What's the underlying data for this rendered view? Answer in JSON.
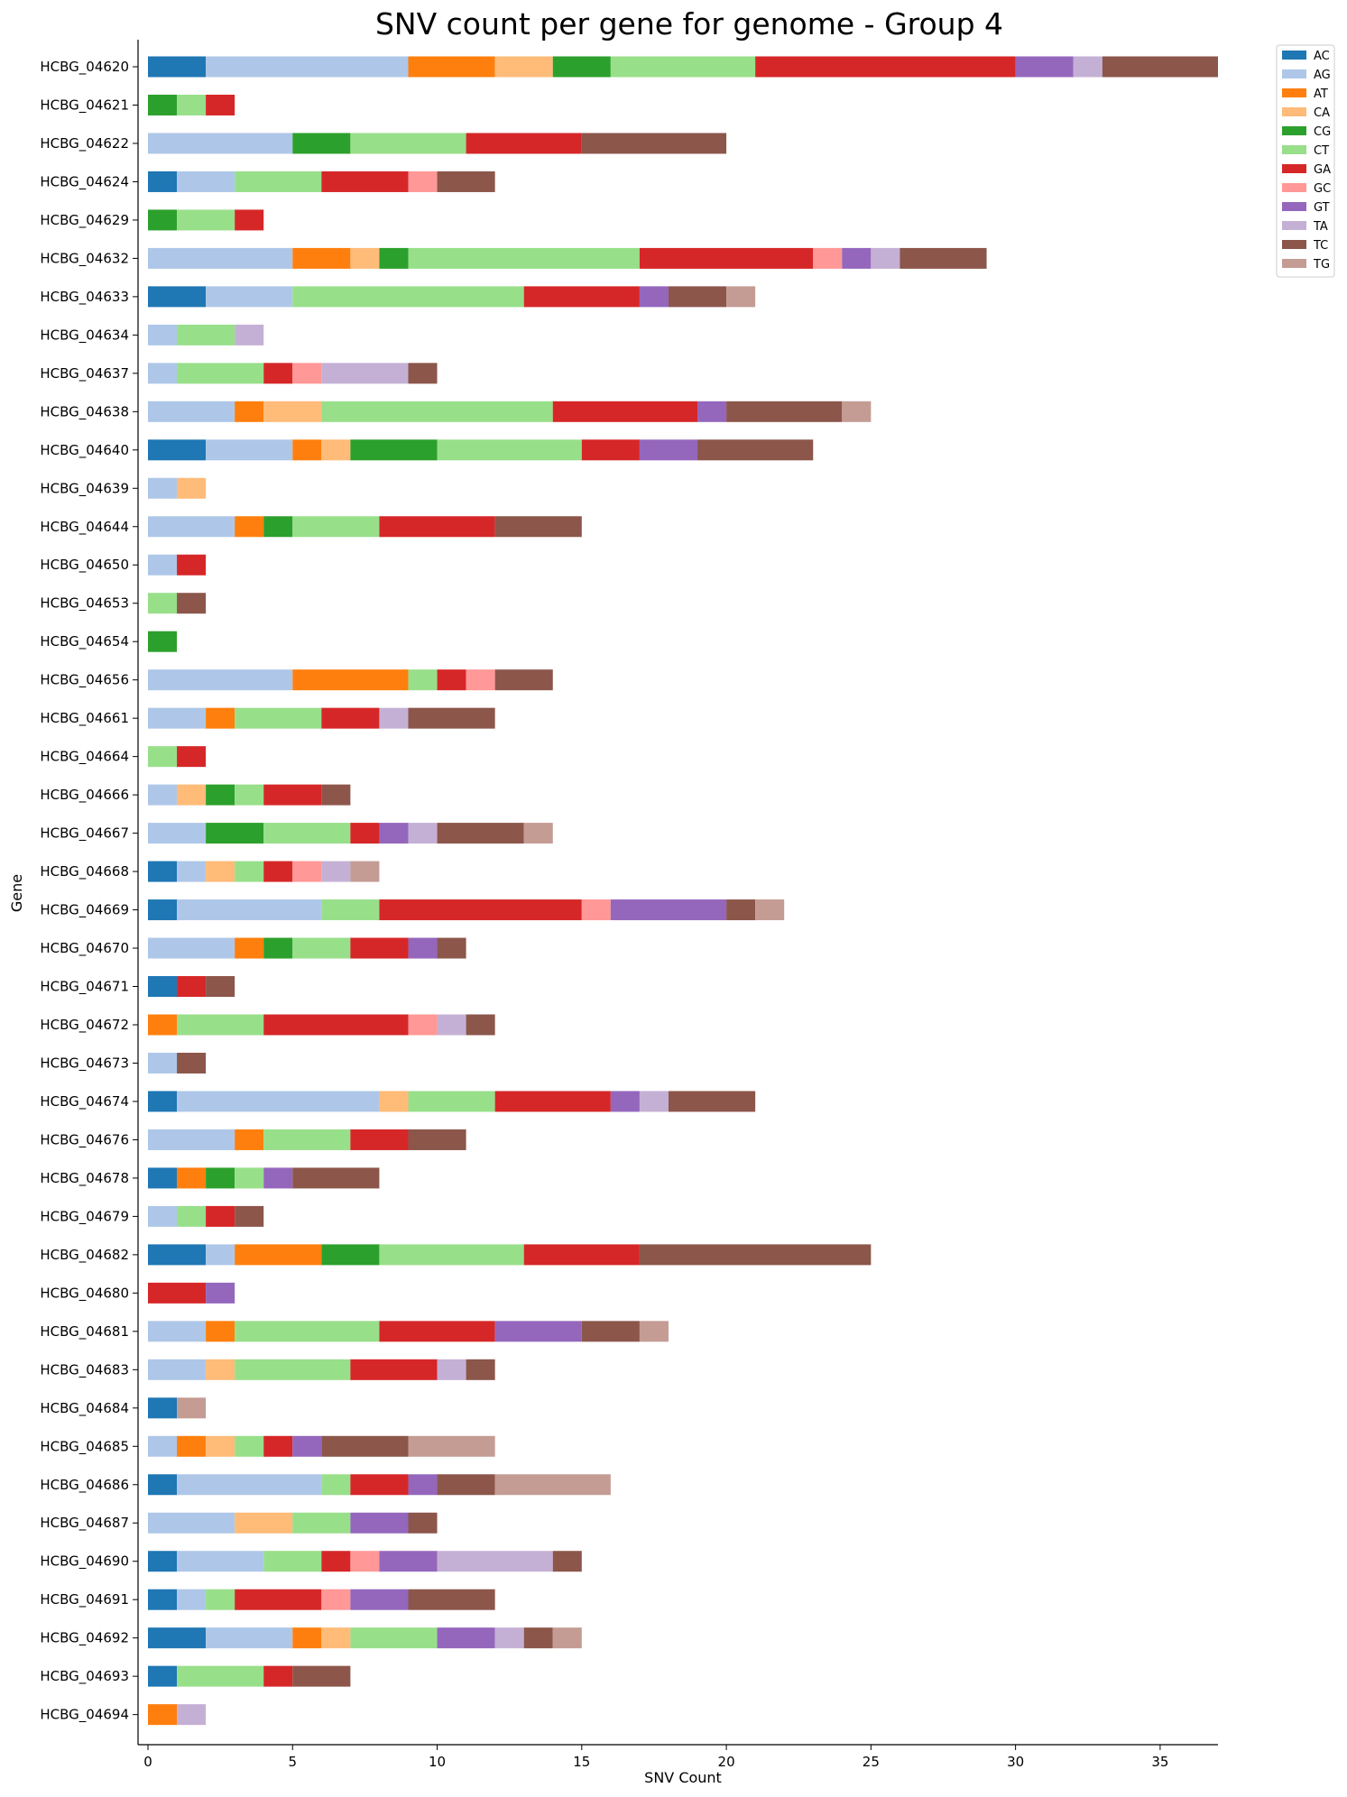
{
  "chart_data": {
    "type": "bar",
    "orientation": "horizontal",
    "stacked": true,
    "title": "SNV count per gene for genome - Group 4",
    "xlabel": "SNV Count",
    "ylabel": "Gene",
    "xlim": [
      0,
      37
    ],
    "xticks": [
      0,
      5,
      10,
      15,
      20,
      25,
      30,
      35
    ],
    "grid": false,
    "legend_position": "top-right, outside plot",
    "categories": [
      "HCBG_04620",
      "HCBG_04621",
      "HCBG_04622",
      "HCBG_04624",
      "HCBG_04629",
      "HCBG_04632",
      "HCBG_04633",
      "HCBG_04634",
      "HCBG_04637",
      "HCBG_04638",
      "HCBG_04640",
      "HCBG_04639",
      "HCBG_04644",
      "HCBG_04650",
      "HCBG_04653",
      "HCBG_04654",
      "HCBG_04656",
      "HCBG_04661",
      "HCBG_04664",
      "HCBG_04666",
      "HCBG_04667",
      "HCBG_04668",
      "HCBG_04669",
      "HCBG_04670",
      "HCBG_04671",
      "HCBG_04672",
      "HCBG_04673",
      "HCBG_04674",
      "HCBG_04676",
      "HCBG_04678",
      "HCBG_04679",
      "HCBG_04682",
      "HCBG_04680",
      "HCBG_04681",
      "HCBG_04683",
      "HCBG_04684",
      "HCBG_04685",
      "HCBG_04686",
      "HCBG_04687",
      "HCBG_04690",
      "HCBG_04691",
      "HCBG_04692",
      "HCBG_04693",
      "HCBG_04694"
    ],
    "series": [
      {
        "name": "AC",
        "color": "#1f77b4",
        "values": [
          2,
          0,
          0,
          1,
          0,
          0,
          2,
          0,
          0,
          0,
          2,
          0,
          0,
          0,
          0,
          0,
          0,
          0,
          0,
          0,
          0,
          1,
          1,
          0,
          1,
          0,
          0,
          1,
          0,
          1,
          0,
          2,
          0,
          0,
          0,
          1,
          0,
          1,
          0,
          1,
          1,
          2,
          1,
          0
        ]
      },
      {
        "name": "AG",
        "color": "#aec7e8",
        "values": [
          7,
          0,
          5,
          2,
          0,
          5,
          3,
          1,
          1,
          3,
          3,
          1,
          3,
          1,
          0,
          0,
          5,
          2,
          0,
          1,
          2,
          1,
          5,
          3,
          0,
          0,
          1,
          7,
          3,
          0,
          1,
          1,
          0,
          2,
          2,
          0,
          1,
          5,
          3,
          3,
          1,
          3,
          0,
          0
        ]
      },
      {
        "name": "AT",
        "color": "#ff7f0e",
        "values": [
          3,
          0,
          0,
          0,
          0,
          2,
          0,
          0,
          0,
          1,
          1,
          0,
          1,
          0,
          0,
          0,
          4,
          1,
          0,
          0,
          0,
          0,
          0,
          1,
          0,
          1,
          0,
          0,
          1,
          1,
          0,
          3,
          0,
          1,
          0,
          0,
          1,
          0,
          0,
          0,
          0,
          1,
          0,
          1
        ]
      },
      {
        "name": "CA",
        "color": "#ffbb78",
        "values": [
          2,
          0,
          0,
          0,
          0,
          1,
          0,
          0,
          0,
          2,
          1,
          1,
          0,
          0,
          0,
          0,
          0,
          0,
          0,
          1,
          0,
          1,
          0,
          0,
          0,
          0,
          0,
          1,
          0,
          0,
          0,
          0,
          0,
          0,
          1,
          0,
          1,
          0,
          2,
          0,
          0,
          1,
          0,
          0
        ]
      },
      {
        "name": "CG",
        "color": "#2ca02c",
        "values": [
          2,
          1,
          2,
          0,
          1,
          1,
          0,
          0,
          0,
          0,
          3,
          0,
          1,
          0,
          0,
          1,
          0,
          0,
          0,
          1,
          2,
          0,
          0,
          1,
          0,
          0,
          0,
          0,
          0,
          1,
          0,
          2,
          0,
          0,
          0,
          0,
          0,
          0,
          0,
          0,
          0,
          0,
          0,
          0
        ]
      },
      {
        "name": "CT",
        "color": "#98df8a",
        "values": [
          5,
          1,
          4,
          3,
          2,
          8,
          8,
          2,
          3,
          8,
          5,
          0,
          3,
          0,
          1,
          0,
          1,
          3,
          1,
          1,
          3,
          1,
          2,
          2,
          0,
          3,
          0,
          3,
          3,
          1,
          1,
          5,
          0,
          5,
          4,
          0,
          1,
          1,
          2,
          2,
          1,
          3,
          3,
          0
        ]
      },
      {
        "name": "GA",
        "color": "#d62728",
        "values": [
          9,
          1,
          4,
          3,
          1,
          6,
          4,
          0,
          1,
          5,
          2,
          0,
          4,
          1,
          0,
          0,
          1,
          2,
          1,
          2,
          1,
          1,
          7,
          2,
          1,
          5,
          0,
          4,
          2,
          0,
          1,
          4,
          2,
          4,
          3,
          0,
          1,
          2,
          0,
          1,
          3,
          0,
          1,
          0
        ]
      },
      {
        "name": "GC",
        "color": "#ff9896",
        "values": [
          0,
          0,
          0,
          1,
          0,
          1,
          0,
          0,
          1,
          0,
          0,
          0,
          0,
          0,
          0,
          0,
          1,
          0,
          0,
          0,
          0,
          1,
          1,
          0,
          0,
          1,
          0,
          0,
          0,
          0,
          0,
          0,
          0,
          0,
          0,
          0,
          0,
          0,
          0,
          1,
          1,
          0,
          0,
          0
        ]
      },
      {
        "name": "GT",
        "color": "#9467bd",
        "values": [
          2,
          0,
          0,
          0,
          0,
          1,
          1,
          0,
          0,
          1,
          2,
          0,
          0,
          0,
          0,
          0,
          0,
          0,
          0,
          0,
          1,
          0,
          4,
          1,
          0,
          0,
          0,
          1,
          0,
          1,
          0,
          0,
          1,
          3,
          0,
          0,
          1,
          1,
          2,
          2,
          2,
          2,
          0,
          0
        ]
      },
      {
        "name": "TA",
        "color": "#c5b0d5",
        "values": [
          1,
          0,
          0,
          0,
          0,
          1,
          0,
          1,
          3,
          0,
          0,
          0,
          0,
          0,
          0,
          0,
          0,
          1,
          0,
          0,
          1,
          1,
          0,
          0,
          0,
          1,
          0,
          1,
          0,
          0,
          0,
          0,
          0,
          0,
          1,
          0,
          0,
          0,
          0,
          4,
          0,
          1,
          0,
          1
        ]
      },
      {
        "name": "TC",
        "color": "#8c564b",
        "values": [
          4,
          0,
          5,
          2,
          0,
          3,
          2,
          0,
          1,
          4,
          4,
          0,
          3,
          0,
          1,
          0,
          2,
          3,
          0,
          1,
          3,
          0,
          1,
          1,
          1,
          1,
          1,
          3,
          2,
          3,
          1,
          8,
          0,
          2,
          1,
          0,
          3,
          2,
          1,
          1,
          3,
          1,
          2,
          0
        ]
      },
      {
        "name": "TG",
        "color": "#c49c94",
        "values": [
          0,
          0,
          0,
          0,
          0,
          0,
          1,
          0,
          0,
          1,
          0,
          0,
          0,
          0,
          0,
          0,
          0,
          0,
          0,
          0,
          1,
          1,
          1,
          0,
          0,
          0,
          0,
          0,
          0,
          0,
          0,
          0,
          0,
          1,
          0,
          1,
          3,
          4,
          0,
          0,
          0,
          1,
          0,
          0
        ]
      }
    ]
  }
}
